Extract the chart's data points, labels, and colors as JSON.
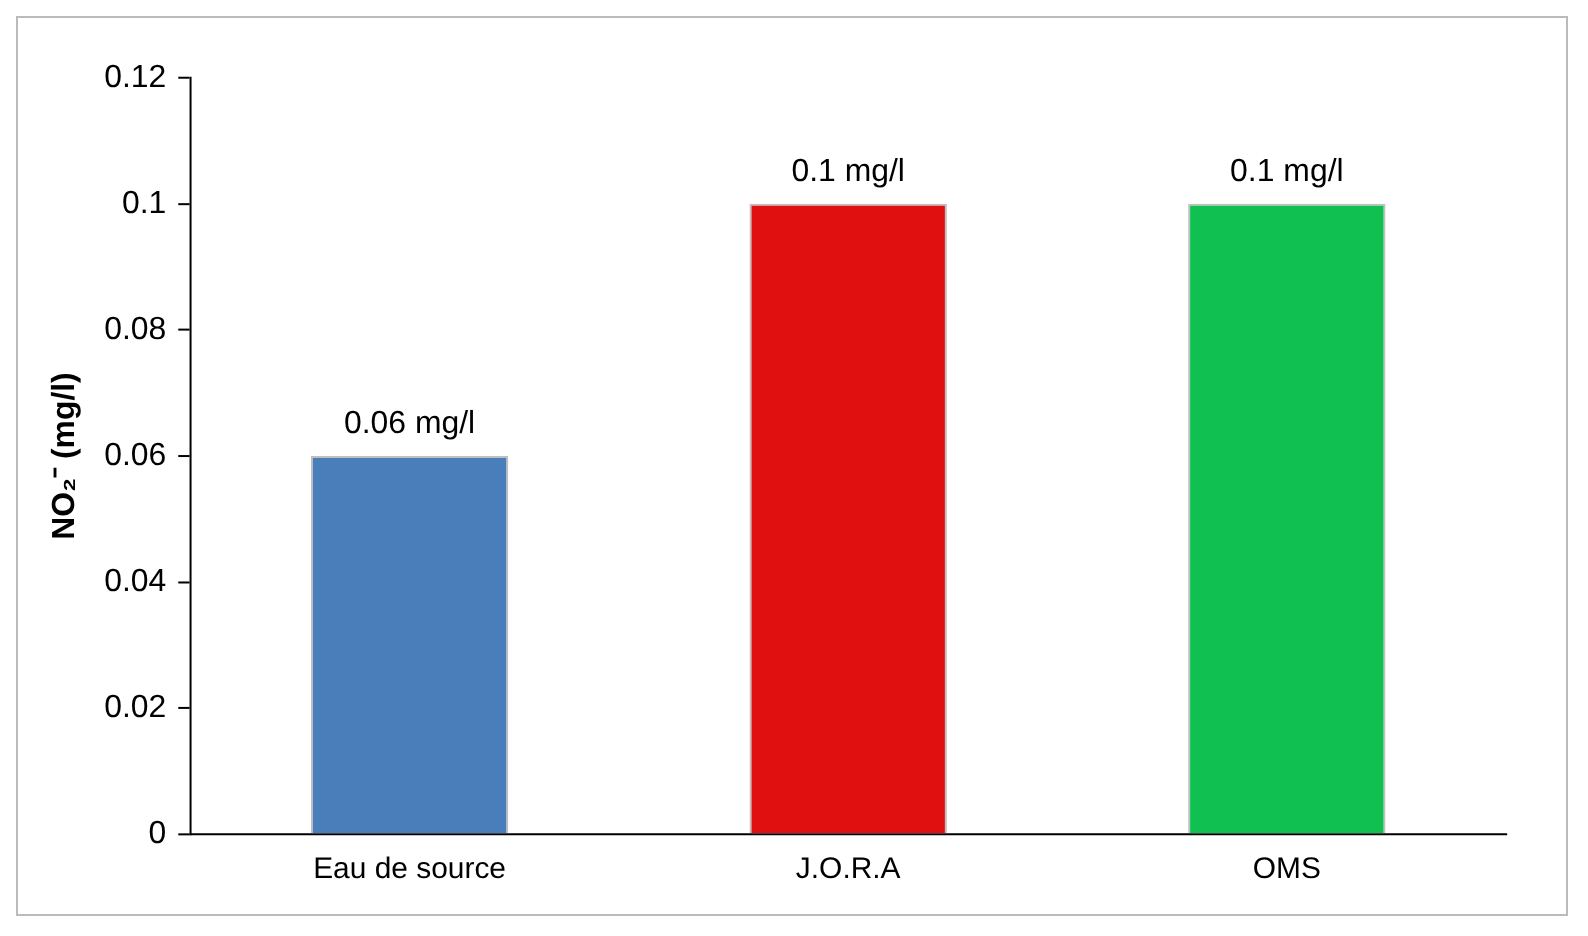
{
  "chart_data": {
    "type": "bar",
    "ylabel": "NO₂⁻ (mg/l)",
    "categories": [
      "Eau de source",
      "J.O.R.A",
      "OMS"
    ],
    "values": [
      0.06,
      0.1,
      0.1
    ],
    "colors": [
      "#4a7ebb",
      "#e01010",
      "#10c050"
    ],
    "value_labels": [
      "0.06 mg/l",
      "0.1 mg/l",
      "0.1 mg/l"
    ],
    "ylim": [
      0,
      0.12
    ],
    "yticks": [
      0,
      0.02,
      0.04,
      0.06,
      0.08,
      0.1,
      0.12
    ],
    "grid": false,
    "legend": false
  }
}
